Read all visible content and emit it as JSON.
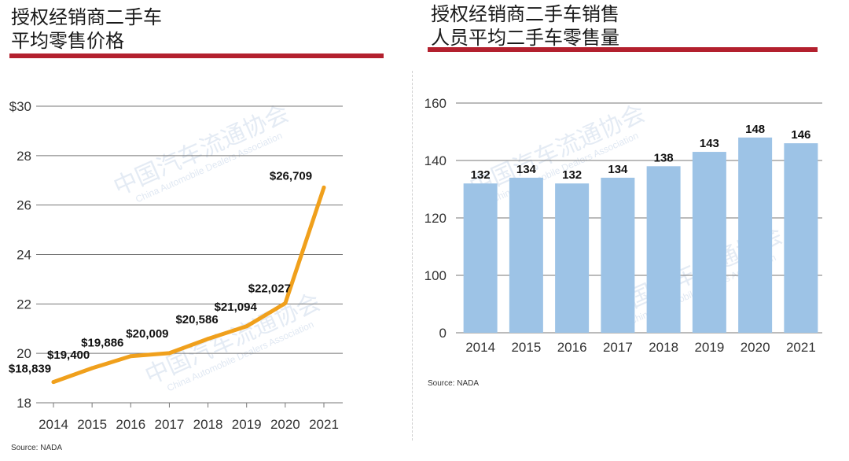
{
  "colors": {
    "accent_rule": "#b3202e",
    "line": "#f0a01c",
    "bar": "#9dc3e6",
    "grid": "#777777"
  },
  "watermark": {
    "text": "中国汽车流通协会",
    "sub": "China Automobile Dealers Association"
  },
  "chart_data": [
    {
      "type": "line",
      "title": "授权经销商二手车\n平均零售价格",
      "source": "Source: NADA",
      "x": [
        "2014",
        "2015",
        "2016",
        "2017",
        "2018",
        "2019",
        "2020",
        "2021"
      ],
      "values": [
        18839,
        19400,
        19886,
        20009,
        20586,
        21094,
        22027,
        26709
      ],
      "data_labels": [
        "$18,839",
        "$19,400",
        "$19,886",
        "$20,009",
        "$20,586",
        "$21,094",
        "$22,027",
        "$26,709"
      ],
      "yticks": [
        18,
        20,
        22,
        24,
        26,
        28,
        30
      ],
      "ytick_labels": [
        "18",
        "20",
        "22",
        "24",
        "26",
        "28",
        "$30"
      ],
      "ylim": [
        18,
        30
      ],
      "y_unit_scale": 1000,
      "grid": true
    },
    {
      "type": "bar",
      "title": "授权经销商二手车销售\n人员平均二手车零售量",
      "source": "Source: NADA",
      "categories": [
        "2014",
        "2015",
        "2016",
        "2017",
        "2018",
        "2019",
        "2020",
        "2021"
      ],
      "values": [
        132,
        134,
        132,
        134,
        138,
        143,
        148,
        146
      ],
      "data_labels": [
        "132",
        "134",
        "132",
        "134",
        "138",
        "143",
        "148",
        "146"
      ],
      "yticks": [
        0,
        100,
        120,
        140,
        160
      ],
      "ytick_labels": [
        "0",
        "100",
        "120",
        "140",
        "160"
      ],
      "ylim": [
        0,
        160
      ],
      "grid": true
    }
  ]
}
